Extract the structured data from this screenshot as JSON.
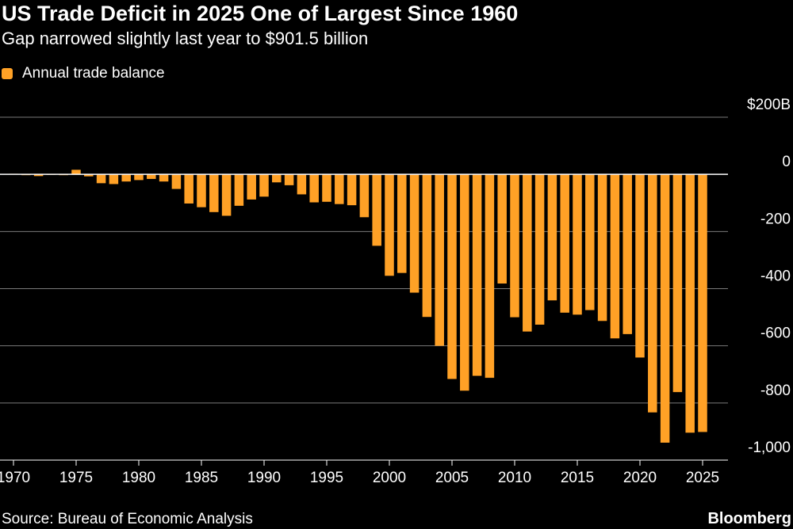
{
  "header": {
    "title": "US Trade Deficit in 2025 One of Largest Since 1960",
    "subtitle": "Gap narrowed slightly last year to $901.5 billion"
  },
  "legend": {
    "label": "Annual trade balance",
    "color": "#FFA126"
  },
  "footer": {
    "source": "Source: Bureau of Economic Analysis",
    "brand": "Bloomberg"
  },
  "chart_data": {
    "type": "bar",
    "title": "US Trade Deficit in 2025 One of Largest Since 1960",
    "subtitle": "Gap narrowed slightly last year to $901.5 billion",
    "xlabel": "",
    "ylabel": "",
    "series": [
      {
        "name": "Annual trade balance",
        "color": "#FFA126"
      }
    ],
    "x": [
      1970,
      1971,
      1972,
      1973,
      1974,
      1975,
      1976,
      1977,
      1978,
      1979,
      1980,
      1981,
      1982,
      1983,
      1984,
      1985,
      1986,
      1987,
      1988,
      1989,
      1990,
      1991,
      1992,
      1993,
      1994,
      1995,
      1996,
      1997,
      1998,
      1999,
      2000,
      2001,
      2002,
      2003,
      2004,
      2005,
      2006,
      2007,
      2008,
      2009,
      2010,
      2011,
      2012,
      2013,
      2014,
      2015,
      2016,
      2017,
      2018,
      2019,
      2020,
      2021,
      2022,
      2023,
      2024,
      2025
    ],
    "values": [
      2,
      -1,
      -6,
      1,
      -2,
      16,
      -7,
      -31,
      -34,
      -25,
      -20,
      -16,
      -25,
      -51,
      -102,
      -115,
      -132,
      -145,
      -110,
      -88,
      -78,
      -28,
      -38,
      -70,
      -98,
      -96,
      -104,
      -108,
      -150,
      -250,
      -355,
      -345,
      -414,
      -499,
      -600,
      -716,
      -757,
      -705,
      -712,
      -382,
      -500,
      -550,
      -526,
      -441,
      -484,
      -491,
      -475,
      -513,
      -574,
      -559,
      -641,
      -833,
      -939,
      -762,
      -904,
      -901.5
    ],
    "y_ticks": [
      200,
      0,
      -200,
      -400,
      -600,
      -800,
      -1000
    ],
    "y_tick_labels": [
      "$200B",
      "0",
      "-200",
      "-400",
      "-600",
      "-800",
      "-1,000"
    ],
    "x_ticks": [
      1970,
      1975,
      1980,
      1985,
      1990,
      1995,
      2000,
      2005,
      2010,
      2015,
      2020,
      2025
    ],
    "x_tick_labels": [
      "1970",
      "1975",
      "1980",
      "1985",
      "1990",
      "1995",
      "2000",
      "2005",
      "2010",
      "2015",
      "2020",
      "2025"
    ],
    "ylim": [
      -1000,
      200
    ],
    "grid": true,
    "legend_position": "top-left"
  }
}
